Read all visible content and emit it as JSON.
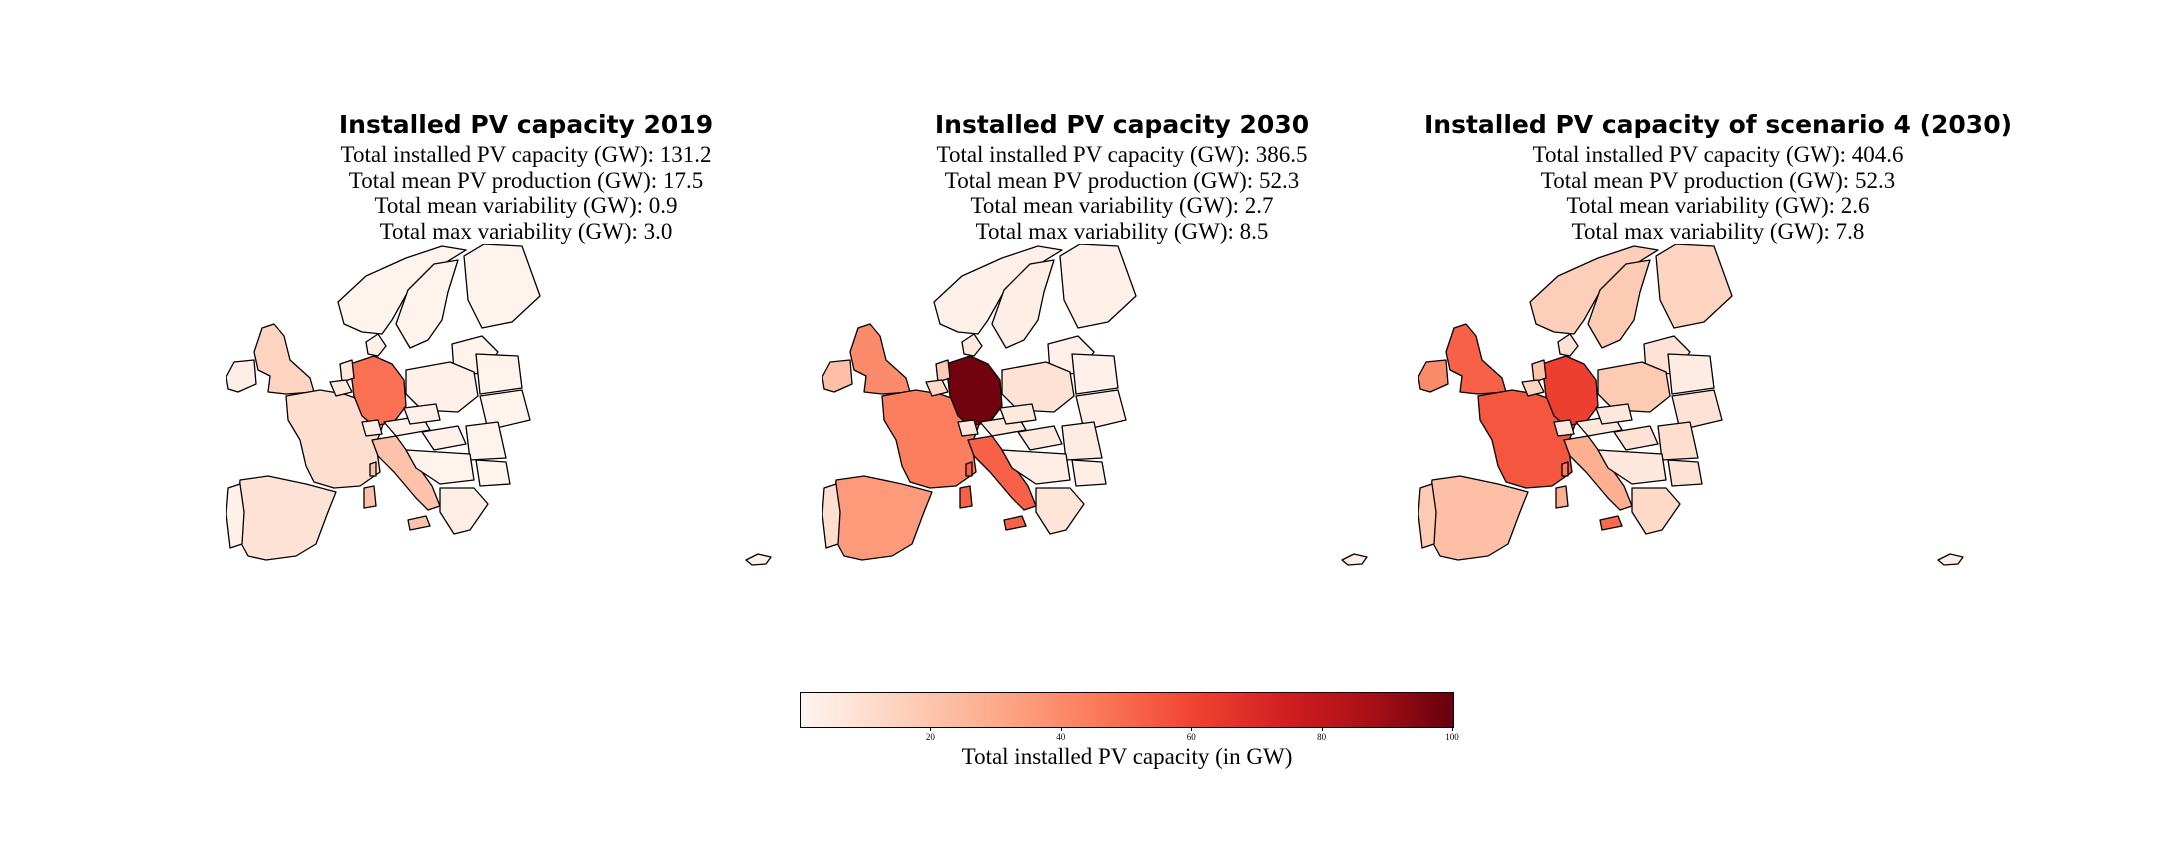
{
  "colors": {
    "scale_low": "#fff5f0",
    "scale_high": "#67000d"
  },
  "panels": [
    {
      "title": "Installed PV capacity 2019",
      "stats": [
        "Total installed PV capacity (GW): 131.2",
        "Total mean PV production (GW): 17.5",
        "Total mean variability (GW): 0.9",
        "Total max variability (GW): 3.0"
      ],
      "regions": {
        "iceland": 2,
        "ireland": 3,
        "uk": 14,
        "france": 10,
        "spain": 8,
        "portugal": 2,
        "germany": 48,
        "italy": 21,
        "netherlands": 6,
        "belgium": 5,
        "switzerland": 3,
        "austria": 2,
        "poland": 2,
        "czechia": 2,
        "denmark": 2,
        "norway": 1,
        "sweden": 1,
        "finland": 1,
        "baltics": 1,
        "belarus": 1,
        "ukraine": 1,
        "romania": 1,
        "bulgaria": 1,
        "hungary": 2,
        "balkans": 1,
        "greece": 3,
        "corsica": 21,
        "sardinia": 21,
        "sicily": 21
      }
    },
    {
      "title": "Installed PV capacity 2030",
      "stats": [
        "Total installed PV capacity (GW): 386.5",
        "Total mean PV production (GW): 52.3",
        "Total mean variability (GW): 2.7",
        "Total max variability (GW): 8.5"
      ],
      "regions": {
        "iceland": 3,
        "ireland": 22,
        "uk": 40,
        "france": 44,
        "spain": 35,
        "portugal": 10,
        "germany": 98,
        "italy": 52,
        "netherlands": 18,
        "belgium": 12,
        "switzerland": 6,
        "austria": 5,
        "poland": 8,
        "czechia": 5,
        "denmark": 5,
        "norway": 2,
        "sweden": 3,
        "finland": 2,
        "baltics": 2,
        "belarus": 2,
        "ukraine": 3,
        "romania": 4,
        "bulgaria": 3,
        "hungary": 5,
        "balkans": 3,
        "greece": 7,
        "corsica": 52,
        "sardinia": 52,
        "sicily": 52
      }
    },
    {
      "title": "Installed PV capacity of scenario 4 (2030)",
      "stats": [
        "Total installed PV capacity (GW): 404.6",
        "Total mean PV production (GW): 52.3",
        "Total mean variability (GW): 2.6",
        "Total max variability (GW): 7.8"
      ],
      "regions": {
        "iceland": 3,
        "ireland": 40,
        "uk": 52,
        "france": 55,
        "spain": 22,
        "portugal": 18,
        "germany": 62,
        "italy": 28,
        "netherlands": 20,
        "belgium": 14,
        "switzerland": 6,
        "austria": 6,
        "poland": 18,
        "czechia": 6,
        "denmark": 8,
        "norway": 16,
        "sweden": 18,
        "finland": 14,
        "baltics": 8,
        "belarus": 4,
        "ukraine": 8,
        "romania": 10,
        "bulgaria": 8,
        "hungary": 8,
        "balkans": 6,
        "greece": 12,
        "corsica": 45,
        "sardinia": 28,
        "sicily": 50
      }
    }
  ],
  "colorbar": {
    "label": "Total installed PV capacity (in GW)",
    "min": 0,
    "max": 100,
    "ticks": [
      20,
      40,
      60,
      80,
      100
    ]
  }
}
